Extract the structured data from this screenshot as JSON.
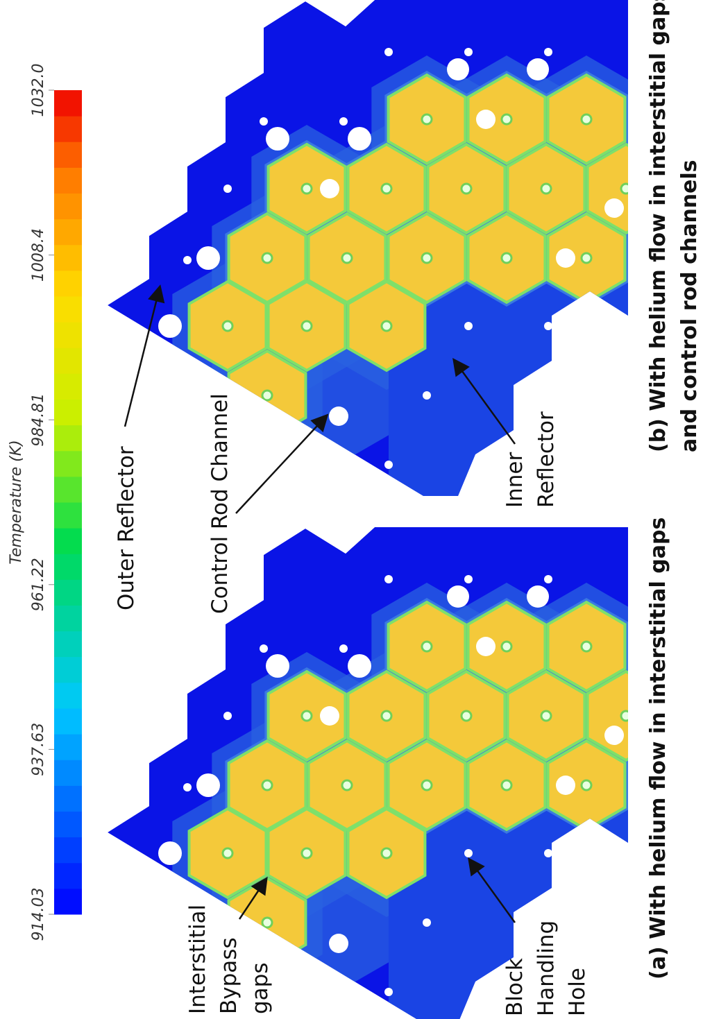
{
  "colorbar": {
    "title": "Temperature (K)",
    "ticks": [
      914.03,
      937.63,
      961.22,
      984.81,
      1008.4,
      {
        "value": 1032.0,
        "label": "1032.0"
      }
    ]
  },
  "panels": [
    {
      "caption": [
        "(a) With helium flow in interstitial gaps"
      ],
      "labels": [
        {
          "lines": [
            "Interstitial",
            "Bypass",
            "gaps"
          ]
        },
        {
          "lines": [
            "Block",
            "Handling",
            "Hole"
          ]
        }
      ]
    },
    {
      "caption": [
        "(b) With helium flow in interstitial gaps",
        "and control rod channels"
      ],
      "labels": [
        {
          "lines": [
            "Outer Reflector"
          ]
        },
        {
          "lines": [
            "Control Rod Channel"
          ]
        },
        {
          "lines": [
            "Inner",
            "Reflector"
          ]
        }
      ]
    }
  ]
}
